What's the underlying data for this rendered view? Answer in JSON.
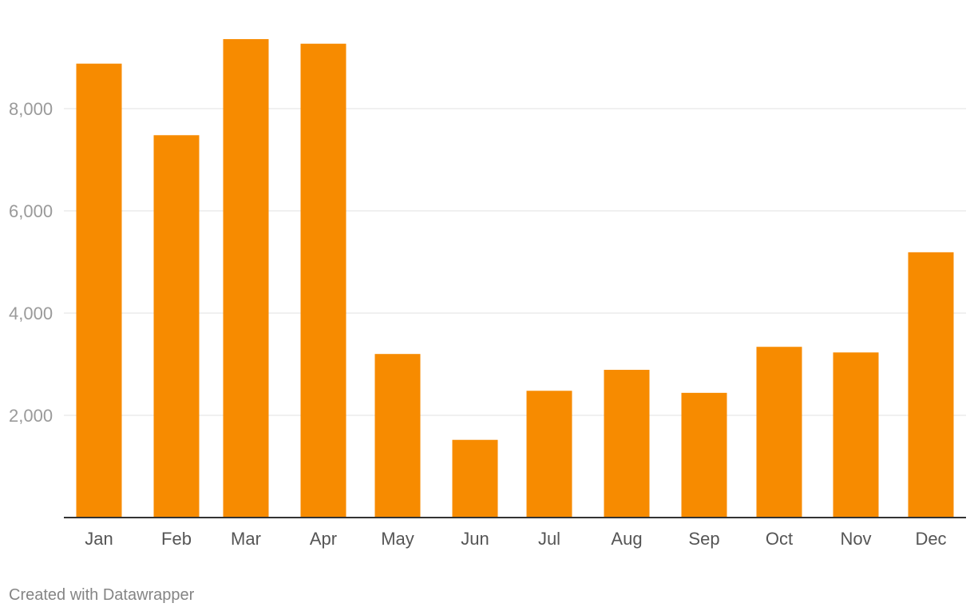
{
  "chart_data": {
    "type": "bar",
    "categories": [
      "Jan",
      "Feb",
      "Mar",
      "Apr",
      "May",
      "Jun",
      "Jul",
      "Aug",
      "Sep",
      "Oct",
      "Nov",
      "Dec"
    ],
    "values": [
      8880,
      7480,
      9360,
      9270,
      3200,
      1520,
      2480,
      2890,
      2440,
      3340,
      3230,
      5190
    ],
    "yticks": [
      2000,
      4000,
      6000,
      8000
    ],
    "ytick_labels": [
      "2,000",
      "4,000",
      "6,000",
      "8,000"
    ],
    "ylim": [
      0,
      10000
    ],
    "bar_color": "#f78b00",
    "grid": true,
    "title": "",
    "xlabel": "",
    "ylabel": ""
  },
  "footer": {
    "credit": "Created with Datawrapper"
  }
}
